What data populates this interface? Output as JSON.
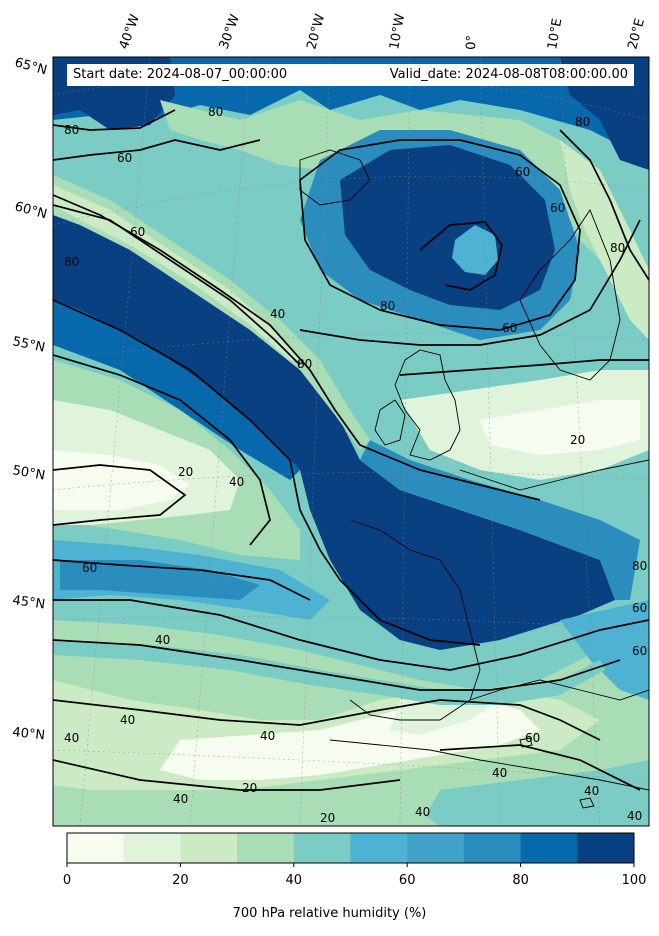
{
  "header": {
    "start_date": "Start date: 2024-08-07_00:00:00",
    "valid_date": "Valid_date: 2024-08-08T08:00:00.00"
  },
  "map": {
    "variable": "700 hPa relative humidity (%)",
    "projection": "conic",
    "longitude_labels": [
      "40°W",
      "30°W",
      "20°W",
      "10°W",
      "0°",
      "10°E",
      "20°E"
    ],
    "latitude_labels": [
      "65°N",
      "60°N",
      "55°N",
      "50°N",
      "45°N",
      "40°N"
    ],
    "contour_labels": [
      "80",
      "60",
      "80",
      "60",
      "80",
      "40",
      "80",
      "60",
      "80",
      "60",
      "80",
      "60",
      "20",
      "20",
      "40",
      "60",
      "40",
      "40",
      "40",
      "40",
      "20",
      "40",
      "60",
      "40",
      "40",
      "40",
      "20",
      "40",
      "60",
      "80",
      "60",
      "80"
    ],
    "palette": [
      "#f7fcf0",
      "#e0f3db",
      "#ccebc5",
      "#a8ddb5",
      "#7bccc4",
      "#4eb3d3",
      "#2b8cbe",
      "#0868ac",
      "#084081"
    ]
  },
  "colorbar": {
    "label": "700 hPa relative humidity (%)",
    "ticks": [
      "0",
      "20",
      "40",
      "60",
      "80",
      "100"
    ],
    "colors": [
      "#f7fcf0",
      "#e0f3db",
      "#ccebc5",
      "#a8ddb5",
      "#7bccc4",
      "#4eb3d3",
      "#43a2ca",
      "#2b8cbe",
      "#0868ac",
      "#084081"
    ]
  }
}
